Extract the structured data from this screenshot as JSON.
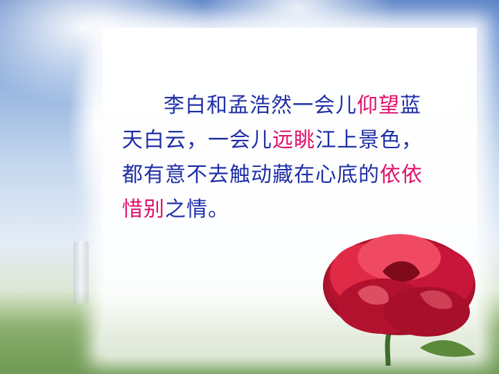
{
  "passage": {
    "s1": "李白和孟浩然一会儿",
    "h1": "仰望",
    "s2": "蓝天白云，一会儿",
    "h2": "远眺",
    "s3": "江上景色，都有意不去触动藏在心底的",
    "h3": "依依惜别",
    "s4": "之情。"
  },
  "colors": {
    "text": "#1f2fa6",
    "highlight": "#e0106a",
    "rose": "#d11a3a"
  }
}
